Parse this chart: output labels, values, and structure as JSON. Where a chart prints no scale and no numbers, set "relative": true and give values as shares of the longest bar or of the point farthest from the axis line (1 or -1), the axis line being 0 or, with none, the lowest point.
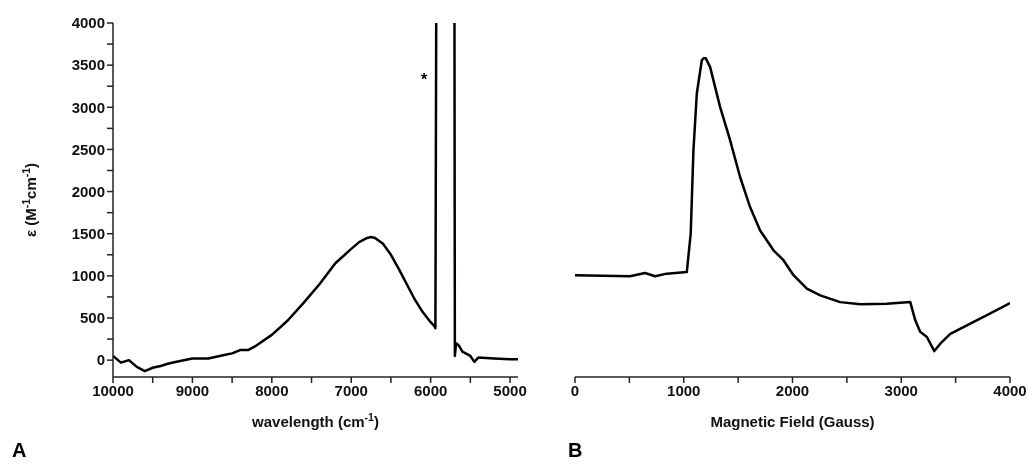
{
  "chart_data": [
    {
      "type": "line",
      "xlabel": "wavelength (cm$^{-1}$)",
      "ylabel": "ε (M$^{-1}$cm$^{-1}$)",
      "xlim": [
        10000,
        4900
      ],
      "ylim": [
        -200,
        4000
      ],
      "xticks": [
        10000,
        {
          "value": 9500,
          "label": null
        },
        9000,
        {
          "value": 8500,
          "label": null
        },
        8000,
        {
          "value": 7500,
          "label": null
        },
        7000,
        {
          "value": 6500,
          "label": null
        },
        6000,
        {
          "value": 5500,
          "label": null
        },
        5000
      ],
      "yticks": [
        0,
        {
          "value": 250,
          "label": null
        },
        500,
        {
          "value": 750,
          "label": null
        },
        1000,
        {
          "value": 1250,
          "label": null
        },
        1500,
        {
          "value": 1750,
          "label": null
        },
        2000,
        {
          "value": 2250,
          "label": null
        },
        2500,
        {
          "value": 2750,
          "label": null
        },
        3000,
        {
          "value": 3250,
          "label": null
        },
        3500,
        {
          "value": 3750,
          "label": null
        },
        4000
      ],
      "x": [
        10000,
        9900,
        9800,
        9700,
        9600,
        9500,
        9400,
        9300,
        9200,
        9000,
        8800,
        8600,
        8500,
        8400,
        8300,
        8200,
        8000,
        7800,
        7600,
        7400,
        7200,
        7000,
        6900,
        6800,
        6750,
        6700,
        6600,
        6500,
        6400,
        6300,
        6200,
        6100,
        6000,
        5950,
        5940,
        5930,
        5800,
        5700,
        5695,
        5680,
        5650,
        5600,
        5500,
        5450,
        5400,
        5200,
        5000,
        4900
      ],
      "series": [
        {
          "color": "#000000",
          "values": [
            50,
            -30,
            0,
            -80,
            -130,
            -90,
            -70,
            -40,
            -20,
            20,
            20,
            60,
            80,
            120,
            120,
            170,
            300,
            470,
            680,
            900,
            1150,
            1320,
            1400,
            1450,
            1460,
            1450,
            1380,
            1250,
            1080,
            900,
            720,
            570,
            450,
            400,
            380,
            4000,
            null,
            4000,
            50,
            200,
            180,
            100,
            50,
            -20,
            30,
            20,
            10,
            10
          ]
        }
      ],
      "annotations": [
        "*",
        "A"
      ]
    },
    {
      "type": "line",
      "xlabel": "Magnetic Field (Gauss)",
      "relative": true,
      "tick_labels": "x",
      "xlim": [
        0,
        4000
      ],
      "xticks": [
        0,
        {
          "value": 500,
          "label": null
        },
        1000,
        {
          "value": 1500,
          "label": null
        },
        2000,
        {
          "value": 2500,
          "label": null
        },
        3000,
        {
          "value": 3500,
          "label": null
        },
        4000
      ],
      "x": [
        0,
        506,
        644,
        736,
        844,
        1028,
        1064,
        1089,
        1120,
        1166,
        1196,
        1242,
        1334,
        1426,
        1518,
        1610,
        1702,
        1825,
        1917,
        2009,
        2132,
        2255,
        2439,
        2623,
        2868,
        3083,
        3129,
        3175,
        3236,
        3304,
        3359,
        3451,
        3635,
        3788,
        4000
      ],
      "series": [
        {
          "color": "#000000",
          "values": [
            0.318,
            0.315,
            0.325,
            0.315,
            0.323,
            0.328,
            0.448,
            0.708,
            0.885,
            0.99,
            1,
            0.969,
            0.844,
            0.74,
            0.625,
            0.531,
            0.458,
            0.396,
            0.365,
            0.318,
            0.276,
            0.255,
            0.234,
            0.227,
            0.229,
            0.234,
            0.177,
            0.141,
            0.125,
            0.081,
            0.104,
            0.135,
            0.167,
            0.193,
            0.231
          ]
        }
      ],
      "annotations": [
        "B"
      ]
    }
  ]
}
